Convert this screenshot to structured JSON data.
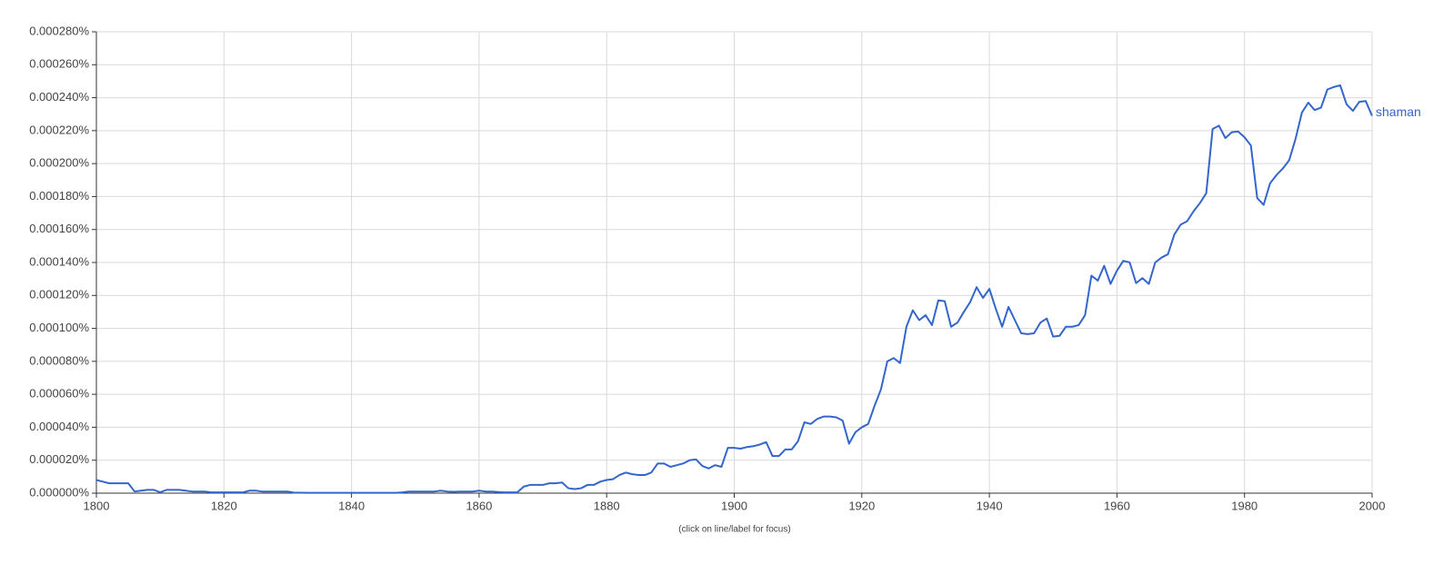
{
  "chart_data": {
    "type": "line",
    "footer": "(click on line/label for focus)",
    "x": [
      1800,
      1801,
      1802,
      1803,
      1804,
      1805,
      1806,
      1807,
      1808,
      1809,
      1810,
      1811,
      1812,
      1813,
      1814,
      1815,
      1816,
      1817,
      1818,
      1819,
      1820,
      1821,
      1822,
      1823,
      1824,
      1825,
      1826,
      1827,
      1828,
      1829,
      1830,
      1831,
      1832,
      1833,
      1834,
      1835,
      1836,
      1837,
      1838,
      1839,
      1840,
      1841,
      1842,
      1843,
      1844,
      1845,
      1846,
      1847,
      1848,
      1849,
      1850,
      1851,
      1852,
      1853,
      1854,
      1855,
      1856,
      1857,
      1858,
      1859,
      1860,
      1861,
      1862,
      1863,
      1864,
      1865,
      1866,
      1867,
      1868,
      1869,
      1870,
      1871,
      1872,
      1873,
      1874,
      1875,
      1876,
      1877,
      1878,
      1879,
      1880,
      1881,
      1882,
      1883,
      1884,
      1885,
      1886,
      1887,
      1888,
      1889,
      1890,
      1891,
      1892,
      1893,
      1894,
      1895,
      1896,
      1897,
      1898,
      1899,
      1900,
      1901,
      1902,
      1903,
      1904,
      1905,
      1906,
      1907,
      1908,
      1909,
      1910,
      1911,
      1912,
      1913,
      1914,
      1915,
      1916,
      1917,
      1918,
      1919,
      1920,
      1921,
      1922,
      1923,
      1924,
      1925,
      1926,
      1927,
      1928,
      1929,
      1930,
      1931,
      1932,
      1933,
      1934,
      1935,
      1936,
      1937,
      1938,
      1939,
      1940,
      1941,
      1942,
      1943,
      1944,
      1945,
      1946,
      1947,
      1948,
      1949,
      1950,
      1951,
      1952,
      1953,
      1954,
      1955,
      1956,
      1957,
      1958,
      1959,
      1960,
      1961,
      1962,
      1963,
      1964,
      1965,
      1966,
      1967,
      1968,
      1969,
      1970,
      1971,
      1972,
      1973,
      1974,
      1975,
      1976,
      1977,
      1978,
      1979,
      1980,
      1981,
      1982,
      1983,
      1984,
      1985,
      1986,
      1987,
      1988,
      1989,
      1990,
      1991,
      1992,
      1993,
      1994,
      1995,
      1996,
      1997,
      1998,
      1999,
      2000
    ],
    "series": [
      {
        "name": "shaman",
        "color": "#3366cc",
        "values": [
          8e-06,
          7e-06,
          6e-06,
          6e-06,
          6e-06,
          6e-06,
          1e-06,
          1.5e-06,
          2e-06,
          2e-06,
          5e-07,
          2e-06,
          2e-06,
          2e-06,
          1.5e-06,
          1e-06,
          1e-06,
          1e-06,
          5e-07,
          5e-07,
          5e-07,
          5e-07,
          5e-07,
          5e-07,
          1.5e-06,
          1.5e-06,
          1e-06,
          1e-06,
          1e-06,
          1e-06,
          1e-06,
          3e-07,
          3e-07,
          2e-07,
          2e-07,
          2e-07,
          2e-07,
          2e-07,
          2e-07,
          2e-07,
          2e-07,
          2e-07,
          2e-07,
          2e-07,
          2e-07,
          2e-07,
          2e-07,
          2e-07,
          5e-07,
          1e-06,
          1e-06,
          1e-06,
          1e-06,
          1e-06,
          1.5e-06,
          1e-06,
          8e-07,
          1e-06,
          1e-06,
          1e-06,
          1.5e-06,
          1e-06,
          1e-06,
          7e-07,
          5e-07,
          5e-07,
          5e-07,
          4e-06,
          5e-06,
          5e-06,
          5e-06,
          6e-06,
          6e-06,
          6.5e-06,
          3e-06,
          2.5e-06,
          3e-06,
          5e-06,
          5e-06,
          7e-06,
          8e-06,
          8.5e-06,
          1.1e-05,
          1.25e-05,
          1.15e-05,
          1.1e-05,
          1.1e-05,
          1.25e-05,
          1.8e-05,
          1.8e-05,
          1.6e-05,
          1.7e-05,
          1.8e-05,
          2e-05,
          2.05e-05,
          1.65e-05,
          1.5e-05,
          1.7e-05,
          1.6e-05,
          2.75e-05,
          2.75e-05,
          2.7e-05,
          2.8e-05,
          2.85e-05,
          2.95e-05,
          3.1e-05,
          2.25e-05,
          2.25e-05,
          2.65e-05,
          2.65e-05,
          3.15e-05,
          4.3e-05,
          4.2e-05,
          4.5e-05,
          4.65e-05,
          4.65e-05,
          4.6e-05,
          4.4e-05,
          3e-05,
          3.7e-05,
          4e-05,
          4.2e-05,
          5.3e-05,
          6.3e-05,
          8e-05,
          8.2e-05,
          7.9e-05,
          0.000101,
          0.000111,
          0.000105,
          0.000108,
          0.000102,
          0.000117,
          0.0001165,
          0.000101,
          0.0001035,
          0.00011,
          0.000116,
          0.000125,
          0.0001185,
          0.000124,
          0.000112,
          0.000101,
          0.000113,
          0.000105,
          9.7e-05,
          9.65e-05,
          9.7e-05,
          0.0001035,
          0.000106,
          9.5e-05,
          9.55e-05,
          0.000101,
          0.000101,
          0.000102,
          0.000108,
          0.000132,
          0.000129,
          0.000138,
          0.000127,
          0.000135,
          0.000141,
          0.00014,
          0.0001275,
          0.0001305,
          0.000127,
          0.00014,
          0.000143,
          0.000145,
          0.000157,
          0.000163,
          0.000165,
          0.000171,
          0.000176,
          0.000182,
          0.000221,
          0.000223,
          0.0002155,
          0.000219,
          0.0002195,
          0.000216,
          0.000211,
          0.000179,
          0.000175,
          0.000188,
          0.000193,
          0.000197,
          0.000202,
          0.000215,
          0.000231,
          0.000237,
          0.0002325,
          0.000234,
          0.000245,
          0.0002465,
          0.0002475,
          0.000236,
          0.000232,
          0.0002375,
          0.000238,
          0.000229
        ]
      }
    ],
    "xlim": [
      1800,
      2000
    ],
    "xticks": [
      1800,
      1820,
      1840,
      1860,
      1880,
      1900,
      1920,
      1940,
      1960,
      1980,
      2000
    ],
    "ylim": [
      0,
      0.00028
    ],
    "yticks": [
      {
        "value": 0,
        "label": "0.000000%"
      },
      {
        "value": 2e-05,
        "label": "0.000020%"
      },
      {
        "value": 4e-05,
        "label": "0.000040%"
      },
      {
        "value": 6e-05,
        "label": "0.000060%"
      },
      {
        "value": 8e-05,
        "label": "0.000080%"
      },
      {
        "value": 0.0001,
        "label": "0.000100%"
      },
      {
        "value": 0.00012,
        "label": "0.000120%"
      },
      {
        "value": 0.00014,
        "label": "0.000140%"
      },
      {
        "value": 0.00016,
        "label": "0.000160%"
      },
      {
        "value": 0.00018,
        "label": "0.000180%"
      },
      {
        "value": 0.0002,
        "label": "0.000200%"
      },
      {
        "value": 0.00022,
        "label": "0.000220%"
      },
      {
        "value": 0.00024,
        "label": "0.000240%"
      },
      {
        "value": 0.00026,
        "label": "0.000260%"
      },
      {
        "value": 0.00028,
        "label": "0.000280%"
      }
    ],
    "grid": true
  }
}
